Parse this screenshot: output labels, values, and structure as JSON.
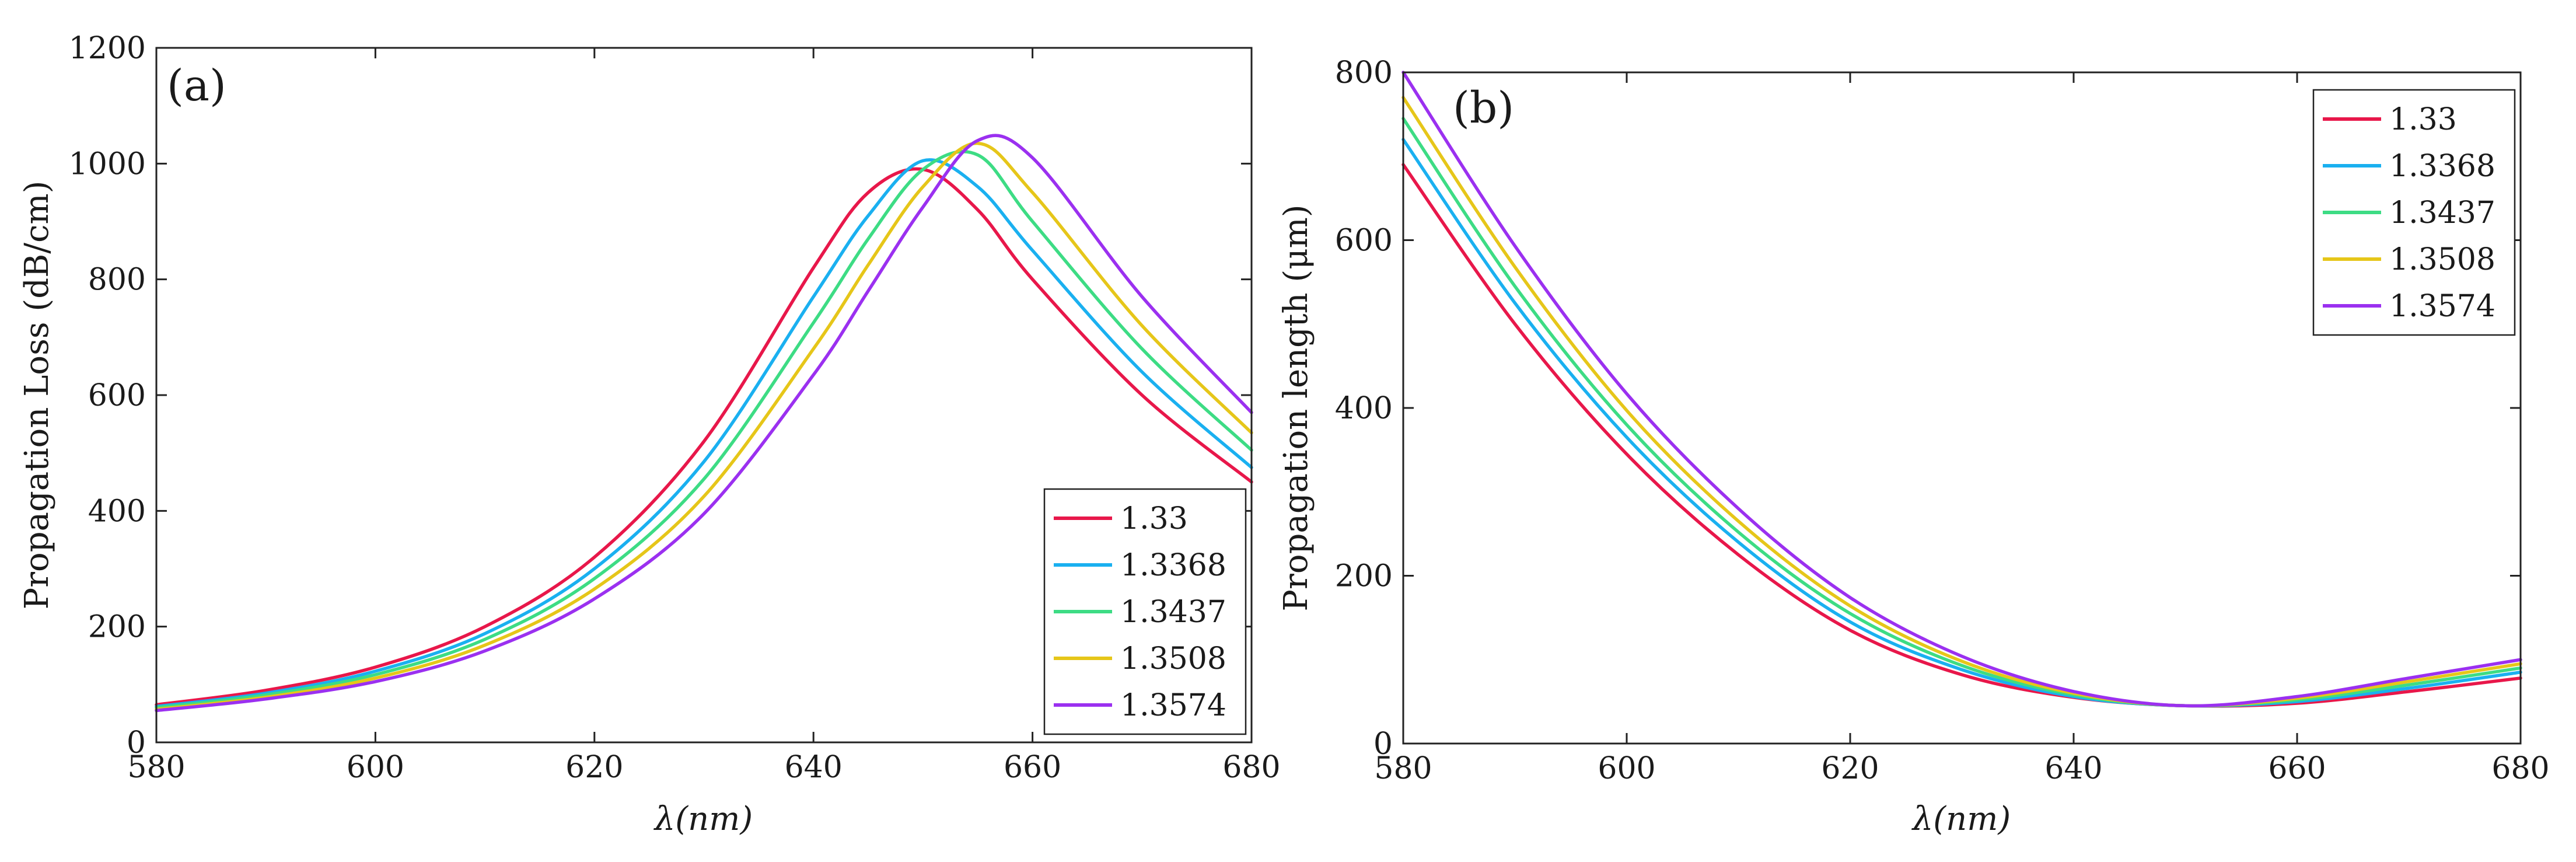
{
  "chart_data": [
    {
      "type": "line",
      "panel_label": "(a)",
      "xlabel": "λ(nm)",
      "ylabel": "Propagation Loss (dB/cm)",
      "xlim": [
        580,
        680
      ],
      "ylim": [
        0,
        1200
      ],
      "xticks": [
        "580",
        "600",
        "620",
        "640",
        "660",
        "680"
      ],
      "yticks": [
        "0",
        "200",
        "400",
        "600",
        "800",
        "1000",
        "1200"
      ],
      "legend_position": "bottom-right",
      "x": [
        580,
        590,
        600,
        610,
        620,
        630,
        640,
        645,
        650,
        655,
        660,
        670,
        680
      ],
      "series": [
        {
          "name": "1.33",
          "color": "#e8174a",
          "values": [
            65,
            90,
            130,
            200,
            320,
            520,
            820,
            950,
            990,
            920,
            800,
            600,
            450
          ]
        },
        {
          "name": "1.3368",
          "color": "#1ab0f0",
          "values": [
            62,
            85,
            123,
            188,
            300,
            485,
            770,
            910,
            1005,
            960,
            850,
            640,
            475
          ]
        },
        {
          "name": "1.3437",
          "color": "#3ddc84",
          "values": [
            60,
            82,
            117,
            178,
            283,
            455,
            725,
            870,
            990,
            1015,
            900,
            680,
            505
          ]
        },
        {
          "name": "1.3508",
          "color": "#e6c619",
          "values": [
            57,
            78,
            111,
            168,
            265,
            425,
            680,
            825,
            960,
            1035,
            950,
            720,
            535
          ]
        },
        {
          "name": "1.3574",
          "color": "#9b30f0",
          "values": [
            55,
            75,
            105,
            158,
            248,
            395,
            635,
            780,
            925,
            1040,
            1010,
            770,
            570
          ]
        }
      ]
    },
    {
      "type": "line",
      "panel_label": "(b)",
      "xlabel": "λ(nm)",
      "ylabel": "Propagation length (μm)",
      "xlim": [
        580,
        680
      ],
      "ylim": [
        0,
        800
      ],
      "xticks": [
        "580",
        "600",
        "620",
        "640",
        "660",
        "680"
      ],
      "yticks": [
        "0",
        "200",
        "400",
        "600",
        "800"
      ],
      "legend_position": "top-right",
      "x": [
        580,
        590,
        600,
        610,
        620,
        630,
        640,
        650,
        660,
        670,
        680
      ],
      "series": [
        {
          "name": "1.33",
          "color": "#e8174a",
          "values": [
            690,
            500,
            345,
            225,
            135,
            82,
            55,
            45,
            48,
            62,
            78
          ]
        },
        {
          "name": "1.3368",
          "color": "#1ab0f0",
          "values": [
            720,
            525,
            365,
            240,
            145,
            88,
            56,
            45,
            50,
            66,
            85
          ]
        },
        {
          "name": "1.3437",
          "color": "#3ddc84",
          "values": [
            745,
            545,
            380,
            252,
            155,
            93,
            58,
            45,
            52,
            70,
            90
          ]
        },
        {
          "name": "1.3508",
          "color": "#e6c619",
          "values": [
            770,
            568,
            397,
            265,
            164,
            98,
            60,
            45,
            54,
            74,
            95
          ]
        },
        {
          "name": "1.3574",
          "color": "#9b30f0",
          "values": [
            800,
            593,
            417,
            280,
            174,
            104,
            62,
            45,
            56,
            78,
            100
          ]
        }
      ]
    }
  ]
}
